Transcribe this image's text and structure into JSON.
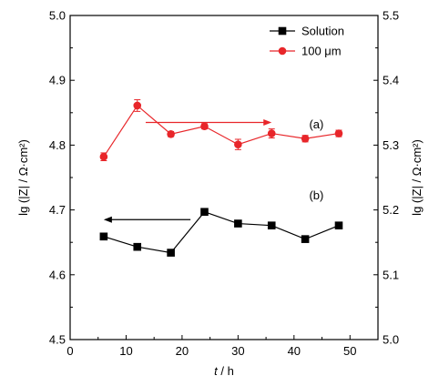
{
  "chart_data": {
    "type": "line",
    "xlabel_var": "t",
    "xlabel_unit": " / h",
    "ylabel_left": "lg (|Z| / Ω·cm²)",
    "ylabel_right": "lg (|Z| / Ω·cm²)",
    "xlim": [
      0,
      55
    ],
    "ylim_left": [
      4.5,
      5.0
    ],
    "ylim_right": [
      5.0,
      5.5
    ],
    "xticks": [
      0,
      10,
      20,
      30,
      40,
      50
    ],
    "yticks_left": [
      4.5,
      4.6,
      4.7,
      4.8,
      4.9,
      5.0
    ],
    "yticks_right": [
      5.0,
      5.1,
      5.2,
      5.3,
      5.4,
      5.5
    ],
    "ytick_labels_left": [
      "4.5",
      "4.6",
      "4.7",
      "4.8",
      "4.9",
      "5.0"
    ],
    "ytick_labels_right": [
      "5.0",
      "5.1",
      "5.2",
      "5.3",
      "5.4",
      "5.5"
    ],
    "grid": false,
    "legend_position": "top-right",
    "series": [
      {
        "name": "Solution",
        "axis": "left",
        "color": "#000000",
        "marker": "square",
        "x": [
          6,
          12,
          18,
          24,
          30,
          36,
          42,
          48
        ],
        "y": [
          4.659,
          4.643,
          4.634,
          4.697,
          4.679,
          4.676,
          4.655,
          4.676
        ],
        "err": [
          0.005,
          0.003,
          0.003,
          0.003,
          0.004,
          0.003,
          0.002,
          0.003
        ]
      },
      {
        "name": "100 μm",
        "axis": "right",
        "color": "#e8262a",
        "marker": "circle",
        "x": [
          6,
          12,
          18,
          24,
          30,
          36,
          42,
          48
        ],
        "y": [
          5.282,
          5.361,
          5.317,
          5.329,
          5.301,
          5.318,
          5.31,
          5.318
        ],
        "err": [
          0.006,
          0.009,
          0.004,
          0.004,
          0.008,
          0.007,
          0.005,
          0.005
        ]
      }
    ],
    "annotations": [
      {
        "text": "(a)",
        "x": 44,
        "y_left": 4.826
      },
      {
        "text": "(b)",
        "x": 44,
        "y_left": 4.716
      }
    ],
    "arrows": [
      {
        "color": "#e8262a",
        "x_from": 13.5,
        "x_to": 36,
        "y_left": 4.835
      },
      {
        "color": "#000000",
        "x_from": 21.5,
        "x_to": 6,
        "y_left": 4.685
      }
    ]
  }
}
